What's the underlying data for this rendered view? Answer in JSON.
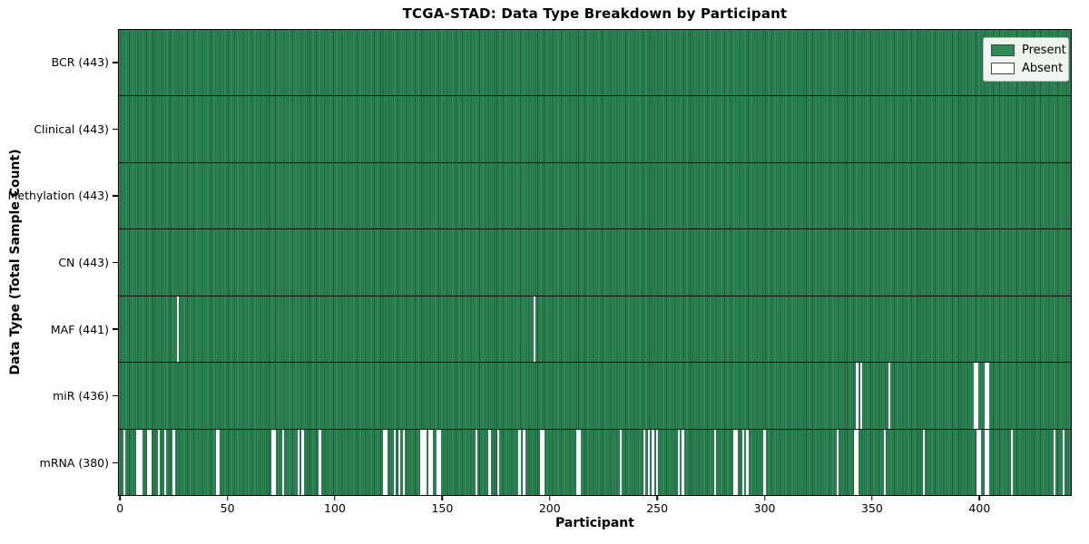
{
  "figure": {
    "title": "TCGA-STAD: Data Type Breakdown by Participant",
    "xlabel": "Participant",
    "ylabel": "Data Type (Total Sample Count)"
  },
  "colors": {
    "present": "#2E8B57",
    "absent": "#FFFFFF",
    "bar_edge": "#1C5434",
    "row_divider": "#0D0D0D",
    "plot_border": "#000000",
    "legend_bg": "#EFF3EF",
    "legend_border": "#B3BCB3",
    "legend_swatch_edge": "#444444"
  },
  "chart_data": {
    "type": "heatmap",
    "title": "TCGA-STAD: Data Type Breakdown by Participant",
    "xlabel": "Participant",
    "ylabel": "Data Type (Total Sample Count)",
    "legend": [
      "Present",
      "Absent"
    ],
    "legend_position": "upper right",
    "n_participants": 443,
    "x_range": [
      0,
      443
    ],
    "x_ticks": [
      0,
      50,
      100,
      150,
      200,
      250,
      300,
      350,
      400
    ],
    "cell_values": {
      "present": 1,
      "absent": 0
    },
    "rows": [
      {
        "name": "BCR",
        "label": "BCR (443)",
        "present_count": 443,
        "absent_participants": []
      },
      {
        "name": "Clinical",
        "label": "Clinical (443)",
        "present_count": 443,
        "absent_participants": []
      },
      {
        "name": "Methylation",
        "label": "Methylation (443)",
        "present_count": 443,
        "absent_participants": []
      },
      {
        "name": "CN",
        "label": "CN (443)",
        "present_count": 443,
        "absent_participants": []
      },
      {
        "name": "MAF",
        "label": "MAF (441)",
        "present_count": 441,
        "absent_participants": [
          27,
          193
        ]
      },
      {
        "name": "miR",
        "label": "miR (436)",
        "present_count": 436,
        "absent_participants": [
          343,
          345,
          358,
          398,
          399,
          403,
          404
        ]
      },
      {
        "name": "mRNA",
        "label": "mRNA (380)",
        "present_count": 380,
        "absent_participants": [
          2,
          8,
          9,
          10,
          13,
          14,
          18,
          21,
          25,
          45,
          46,
          71,
          72,
          76,
          83,
          85,
          93,
          123,
          124,
          128,
          130,
          132,
          140,
          141,
          142,
          144,
          145,
          148,
          149,
          166,
          172,
          176,
          186,
          188,
          196,
          197,
          213,
          214,
          233,
          244,
          246,
          248,
          250,
          260,
          262,
          277,
          286,
          287,
          290,
          292,
          300,
          334,
          342,
          343,
          356,
          374,
          399,
          400,
          403,
          404,
          415,
          435,
          439
        ]
      }
    ]
  }
}
